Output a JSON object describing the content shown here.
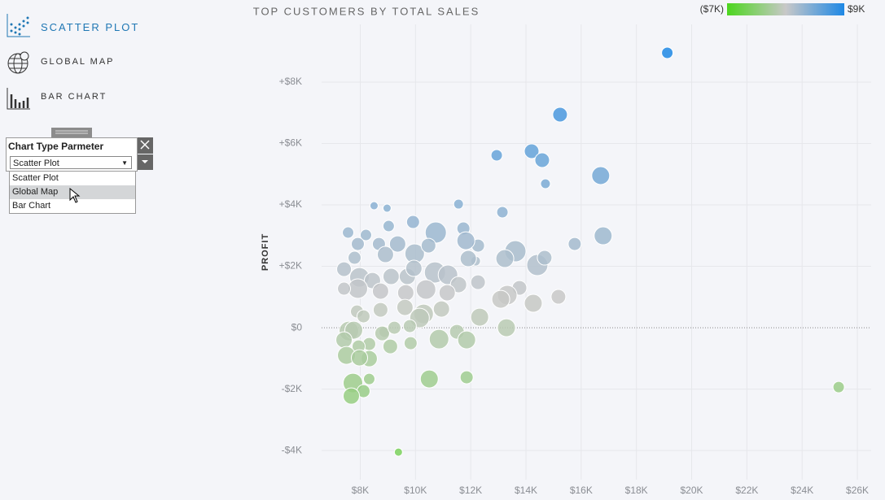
{
  "nav": [
    {
      "label": "SCATTER PLOT",
      "selected": true
    },
    {
      "label": "GLOBAL MAP",
      "selected": false
    },
    {
      "label": "BAR CHART",
      "selected": false
    }
  ],
  "parameter": {
    "title": "Chart Type Parmeter",
    "current": "Scatter Plot",
    "options": [
      "Scatter Plot",
      "Global Map",
      "Bar Chart"
    ],
    "hovered": 1
  },
  "chart_data": {
    "type": "scatter",
    "title": "TOP CUSTOMERS BY TOTAL SALES",
    "y_label": "PROFIT",
    "xlim": [
      6600,
      26500
    ],
    "ylim": [
      -4950,
      9880
    ],
    "xticks": [
      {
        "value": 8000,
        "label": "$8K"
      },
      {
        "value": 10000,
        "label": "$10K"
      },
      {
        "value": 12000,
        "label": "$12K"
      },
      {
        "value": 14000,
        "label": "$14K"
      },
      {
        "value": 16000,
        "label": "$16K"
      },
      {
        "value": 18000,
        "label": "$18K"
      },
      {
        "value": 20000,
        "label": "$20K"
      },
      {
        "value": 22000,
        "label": "$22K"
      },
      {
        "value": 24000,
        "label": "$24K"
      },
      {
        "value": 26000,
        "label": "$26K"
      }
    ],
    "yticks": [
      {
        "value": -4000,
        "label": "-$4K"
      },
      {
        "value": -2000,
        "label": "-$2K"
      },
      {
        "value": 0,
        "label": "$0"
      },
      {
        "value": 2000,
        "label": "+$2K"
      },
      {
        "value": 4000,
        "label": "+$4K"
      },
      {
        "value": 6000,
        "label": "+$6K"
      },
      {
        "value": 8000,
        "label": "+$8K"
      }
    ],
    "grid": true,
    "color_legend": {
      "min": {
        "value": -7000,
        "label": "($7K)"
      },
      "max": {
        "value": 9000,
        "label": "$9K"
      },
      "colors": [
        "#4cd61e",
        "#c8c8c8",
        "#1e88e5"
      ]
    },
    "series": [
      {
        "x": [
          19118,
          15235,
          14206,
          14588,
          12941,
          16706,
          14706,
          13147,
          11559,
          8971,
          8500,
          16794,
          15765,
          13618,
          13235,
          14412,
          14676,
          10735,
          9912,
          9029,
          7559,
          8206,
          11735,
          12265,
          11824,
          12176,
          11912,
          9971,
          9353,
          10471,
          8676,
          7912,
          8912,
          7794,
          7412,
          7971,
          8441,
          9118,
          9706,
          10706,
          9941,
          11176,
          11559,
          12265,
          10382,
          9647,
          8735,
          7912,
          7412,
          13765,
          13324,
          13088,
          15176,
          14265,
          11147,
          9618,
          8735,
          7882,
          10294,
          10941,
          8118,
          12324,
          10147,
          13294,
          7588,
          8882,
          7765,
          8794,
          9235,
          9794,
          10853,
          11500,
          11853,
          7412,
          8324,
          7941,
          9088,
          9824,
          7500,
          8324,
          7971,
          8324,
          10500,
          11853,
          7735,
          8118,
          7676,
          25324,
          9382
        ],
        "values": [
          8954,
          6940,
          5748,
          5457,
          5616,
          4954,
          4689,
          3762,
          4026,
          3894,
          3974,
          2993,
          2728,
          2490,
          2252,
          2040,
          2278,
          3099,
          3444,
          3311,
          3099,
          3020,
          3232,
          2675,
          2834,
          2172,
          2252,
          2411,
          2728,
          2675,
          2728,
          2728,
          2384,
          2278,
          1907,
          1642,
          1536,
          1669,
          1669,
          1801,
          1934,
          1722,
          1404,
          1483,
          1245,
          1139,
          1192,
          1272,
          1272,
          1298,
          1060,
          927,
          1007,
          795,
          1139,
          662,
          583,
          530,
          450,
          609,
          371,
          344,
          318,
          0,
          -106,
          -132,
          -79,
          -185,
          0,
          53,
          -371,
          -132,
          -397,
          -397,
          -530,
          -609,
          -609,
          -503,
          -901,
          -1007,
          -980,
          -1669,
          -1669,
          -1616,
          -1801,
          -2066,
          -2225,
          -1934,
          -4053
        ],
        "sizes": [
          7,
          9,
          9,
          9,
          7,
          11,
          6,
          7,
          6,
          5,
          5,
          11,
          8,
          13,
          11,
          13,
          9,
          13,
          8,
          7,
          7,
          7,
          8,
          8,
          11,
          6,
          10,
          12,
          10,
          9,
          8,
          8,
          10,
          8,
          9,
          12,
          10,
          10,
          10,
          13,
          10,
          12,
          10,
          9,
          12,
          10,
          10,
          12,
          8,
          9,
          12,
          11,
          9,
          11,
          10,
          10,
          9,
          8,
          12,
          10,
          8,
          11,
          12,
          11,
          12,
          7,
          11,
          9,
          8,
          8,
          12,
          9,
          11,
          10,
          8,
          8,
          9,
          8,
          11,
          10,
          10,
          7,
          11,
          8,
          12,
          8,
          10,
          7,
          5
        ]
      }
    ]
  }
}
